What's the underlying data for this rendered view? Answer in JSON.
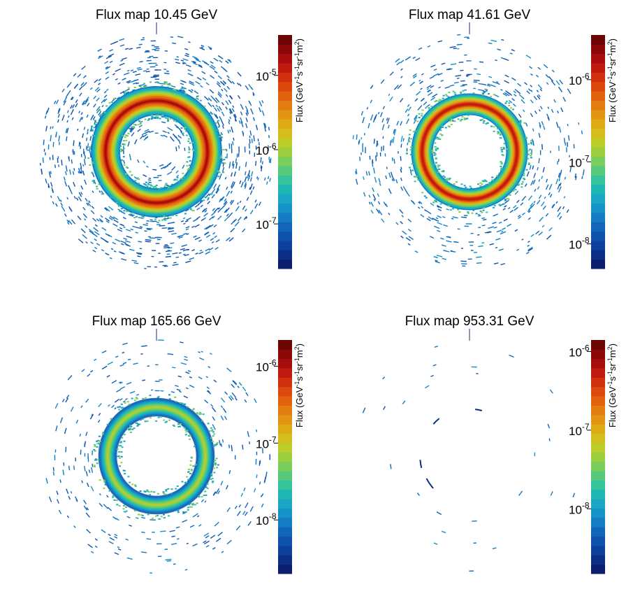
{
  "palette": [
    "#0b1f6e",
    "#0c2f86",
    "#0d3f9c",
    "#0f52ad",
    "#1166ba",
    "#137cc4",
    "#1792c8",
    "#1aa7c4",
    "#1fb7b4",
    "#36c29a",
    "#57c97c",
    "#7ace5c",
    "#9ccf3e",
    "#bccc28",
    "#d3be1c",
    "#deaa16",
    "#e29413",
    "#e37c11",
    "#e1630f",
    "#db490e",
    "#d1300d",
    "#c0190d",
    "#a80d0d",
    "#8b0808",
    "#6e0505"
  ],
  "chart_data": [
    {
      "type": "heatmap",
      "title": "Flux map 10.45 GeV",
      "zlabel": {
        "main": "Flux (GeV",
        "sup1": "-1",
        "s": "s",
        "sup2": "-1",
        "sr": "sr",
        "sup3": "-1",
        "m": "m",
        "sup4": "2",
        "close": ")"
      },
      "zscale": "log",
      "zlim": [
        2.5e-08,
        3.5e-05
      ],
      "zticks": [
        {
          "base": "10",
          "exp": "-5",
          "value": 1e-05
        },
        {
          "base": "10",
          "exp": "-6",
          "value": 1e-06
        },
        {
          "base": "10",
          "exp": "-7",
          "value": 1e-07
        }
      ],
      "ring": {
        "center_flux": 1.5e-05,
        "intensity": 0.95,
        "width": 0.95
      },
      "background": {
        "density": 1.0,
        "flux": 6e-08,
        "inner_fill": true
      }
    },
    {
      "type": "heatmap",
      "title": "Flux map 41.61 GeV",
      "zlabel": {
        "main": "Flux (GeV",
        "sup1": "-1",
        "s": "s",
        "sup2": "-1",
        "sr": "sr",
        "sup3": "-1",
        "m": "m",
        "sup4": "2",
        "close": ")"
      },
      "zscale": "log",
      "zlim": [
        5e-09,
        3.5e-06
      ],
      "zticks": [
        {
          "base": "10",
          "exp": "-6",
          "value": 1e-06
        },
        {
          "base": "10",
          "exp": "-7",
          "value": 1e-07
        },
        {
          "base": "10",
          "exp": "-8",
          "value": 1e-08
        }
      ],
      "ring": {
        "center_flux": 1.5e-06,
        "intensity": 0.8,
        "width": 0.6
      },
      "background": {
        "density": 0.55,
        "flux": 1.2e-08,
        "inner_fill": false
      }
    },
    {
      "type": "heatmap",
      "title": "Flux map 165.66 GeV",
      "zlabel": {
        "main": "Flux (GeV",
        "sup1": "-1",
        "s": "s",
        "sup2": "-1",
        "sr": "sr",
        "sup3": "-1",
        "m": "m",
        "sup4": "2",
        "close": ")"
      },
      "zscale": "log",
      "zlim": [
        2e-09,
        2.2e-06
      ],
      "zticks": [
        {
          "base": "10",
          "exp": "-6",
          "value": 1e-06
        },
        {
          "base": "10",
          "exp": "-7",
          "value": 1e-07
        },
        {
          "base": "10",
          "exp": "-8",
          "value": 1e-08
        }
      ],
      "ring": {
        "center_flux": 8e-08,
        "intensity": 0.55,
        "width": 0.45
      },
      "background": {
        "density": 0.3,
        "flux": 5e-09,
        "inner_fill": false
      }
    },
    {
      "type": "heatmap",
      "title": "Flux map 953.31 GeV",
      "zlabel": {
        "main": "Flux (GeV",
        "sup1": "-1",
        "s": "s",
        "sup2": "-1",
        "sr": "sr",
        "sup3": "-1",
        "m": "m",
        "sup4": "2",
        "close": ")"
      },
      "zscale": "log",
      "zlim": [
        1.5e-09,
        1.4e-06
      ],
      "zticks": [
        {
          "base": "10",
          "exp": "-6",
          "value": 1e-06
        },
        {
          "base": "10",
          "exp": "-7",
          "value": 1e-07
        },
        {
          "base": "10",
          "exp": "-8",
          "value": 1e-08
        }
      ],
      "ring": {
        "center_flux": 8e-09,
        "intensity": 0.12,
        "width": 0.25
      },
      "background": {
        "density": 0.03,
        "flux": 4e-09,
        "inner_fill": false
      }
    }
  ]
}
